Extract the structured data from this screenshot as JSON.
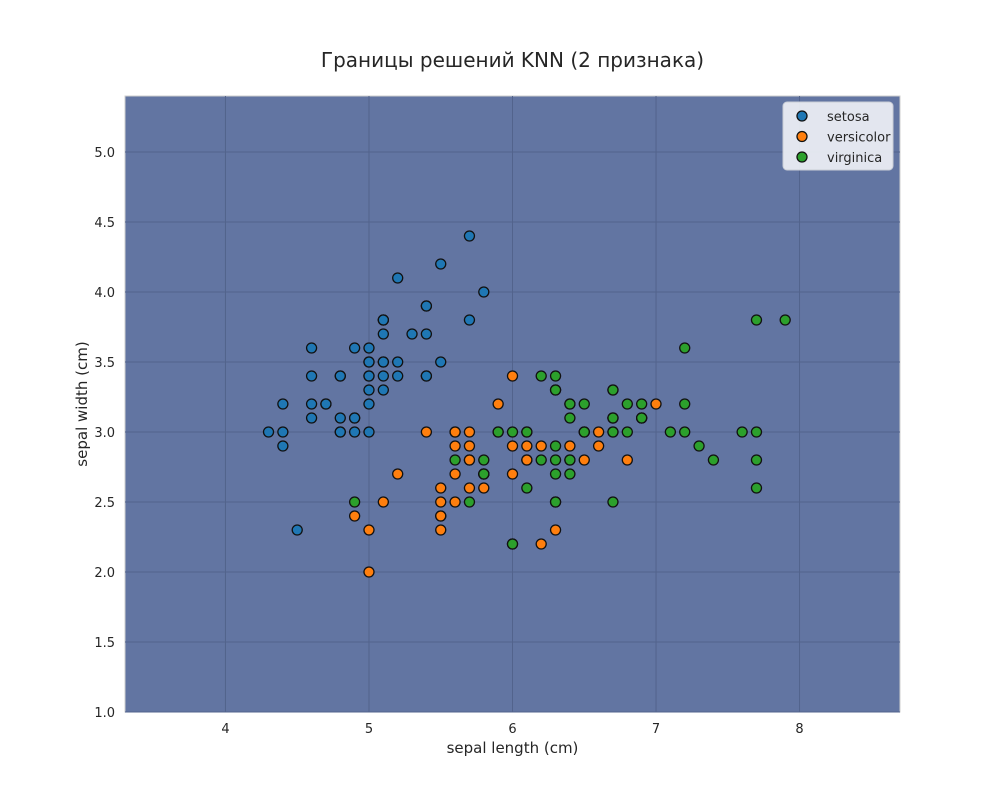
{
  "chart_data": {
    "type": "scatter",
    "title": "Границы решений KNN (2 признака)",
    "xlabel": "sepal length (cm)",
    "ylabel": "sepal width (cm)",
    "xlim": [
      3.3,
      8.7
    ],
    "ylim": [
      1.0,
      5.4
    ],
    "xticks": [
      4,
      5,
      6,
      7,
      8
    ],
    "yticks": [
      1.0,
      1.5,
      2.0,
      2.5,
      3.0,
      3.5,
      4.0,
      4.5,
      5.0
    ],
    "grid": true,
    "background_color": "#6275a2",
    "legend_position": "top-right",
    "series": [
      {
        "name": "setosa",
        "color": "#1f77b4",
        "points": [
          [
            5.1,
            3.5
          ],
          [
            4.9,
            3.0
          ],
          [
            4.7,
            3.2
          ],
          [
            4.6,
            3.1
          ],
          [
            5.0,
            3.6
          ],
          [
            5.4,
            3.9
          ],
          [
            4.6,
            3.4
          ],
          [
            5.0,
            3.4
          ],
          [
            4.4,
            2.9
          ],
          [
            4.9,
            3.1
          ],
          [
            5.4,
            3.7
          ],
          [
            4.8,
            3.4
          ],
          [
            4.8,
            3.0
          ],
          [
            4.3,
            3.0
          ],
          [
            5.8,
            4.0
          ],
          [
            5.7,
            4.4
          ],
          [
            5.4,
            3.9
          ],
          [
            5.1,
            3.5
          ],
          [
            5.7,
            3.8
          ],
          [
            5.1,
            3.8
          ],
          [
            5.4,
            3.4
          ],
          [
            5.1,
            3.7
          ],
          [
            4.6,
            3.6
          ],
          [
            5.1,
            3.3
          ],
          [
            4.8,
            3.4
          ],
          [
            5.0,
            3.0
          ],
          [
            5.0,
            3.4
          ],
          [
            5.2,
            3.5
          ],
          [
            5.2,
            3.4
          ],
          [
            4.7,
            3.2
          ],
          [
            4.8,
            3.1
          ],
          [
            5.4,
            3.4
          ],
          [
            5.2,
            4.1
          ],
          [
            5.5,
            4.2
          ],
          [
            4.9,
            3.1
          ],
          [
            5.0,
            3.2
          ],
          [
            5.5,
            3.5
          ],
          [
            4.9,
            3.6
          ],
          [
            4.4,
            3.0
          ],
          [
            5.1,
            3.4
          ],
          [
            5.0,
            3.5
          ],
          [
            4.5,
            2.3
          ],
          [
            4.4,
            3.2
          ],
          [
            5.0,
            3.5
          ],
          [
            5.1,
            3.8
          ],
          [
            4.8,
            3.0
          ],
          [
            5.1,
            3.8
          ],
          [
            4.6,
            3.2
          ],
          [
            5.3,
            3.7
          ],
          [
            5.0,
            3.3
          ]
        ]
      },
      {
        "name": "versicolor",
        "color": "#ff7f0e",
        "points": [
          [
            7.0,
            3.2
          ],
          [
            6.4,
            3.2
          ],
          [
            6.9,
            3.1
          ],
          [
            5.5,
            2.3
          ],
          [
            6.5,
            2.8
          ],
          [
            5.7,
            2.8
          ],
          [
            6.3,
            3.3
          ],
          [
            4.9,
            2.4
          ],
          [
            6.6,
            2.9
          ],
          [
            5.2,
            2.7
          ],
          [
            5.0,
            2.0
          ],
          [
            5.9,
            3.0
          ],
          [
            6.0,
            2.2
          ],
          [
            6.1,
            2.9
          ],
          [
            5.6,
            2.9
          ],
          [
            6.7,
            3.1
          ],
          [
            5.6,
            3.0
          ],
          [
            5.8,
            2.7
          ],
          [
            6.2,
            2.2
          ],
          [
            5.6,
            2.5
          ],
          [
            5.9,
            3.2
          ],
          [
            6.1,
            2.8
          ],
          [
            6.3,
            2.5
          ],
          [
            6.1,
            2.8
          ],
          [
            6.4,
            2.9
          ],
          [
            6.6,
            3.0
          ],
          [
            6.8,
            2.8
          ],
          [
            6.7,
            3.0
          ],
          [
            6.0,
            2.9
          ],
          [
            5.7,
            2.6
          ],
          [
            5.5,
            2.4
          ],
          [
            5.5,
            2.4
          ],
          [
            5.8,
            2.7
          ],
          [
            6.0,
            2.7
          ],
          [
            5.4,
            3.0
          ],
          [
            6.0,
            3.4
          ],
          [
            6.7,
            3.1
          ],
          [
            6.3,
            2.3
          ],
          [
            5.6,
            3.0
          ],
          [
            5.5,
            2.5
          ],
          [
            5.5,
            2.6
          ],
          [
            6.1,
            3.0
          ],
          [
            5.8,
            2.6
          ],
          [
            5.0,
            2.3
          ],
          [
            5.6,
            2.7
          ],
          [
            5.7,
            3.0
          ],
          [
            5.7,
            2.9
          ],
          [
            6.2,
            2.9
          ],
          [
            5.1,
            2.5
          ],
          [
            5.7,
            2.8
          ]
        ]
      },
      {
        "name": "virginica",
        "color": "#2ca02c",
        "points": [
          [
            6.3,
            3.3
          ],
          [
            5.8,
            2.7
          ],
          [
            7.1,
            3.0
          ],
          [
            6.3,
            2.9
          ],
          [
            6.5,
            3.0
          ],
          [
            7.6,
            3.0
          ],
          [
            4.9,
            2.5
          ],
          [
            7.3,
            2.9
          ],
          [
            6.7,
            2.5
          ],
          [
            7.2,
            3.6
          ],
          [
            6.5,
            3.2
          ],
          [
            6.4,
            2.7
          ],
          [
            6.8,
            3.0
          ],
          [
            5.7,
            2.5
          ],
          [
            5.8,
            2.8
          ],
          [
            6.4,
            3.2
          ],
          [
            6.5,
            3.0
          ],
          [
            7.7,
            3.8
          ],
          [
            7.7,
            2.6
          ],
          [
            6.0,
            2.2
          ],
          [
            6.9,
            3.2
          ],
          [
            5.6,
            2.8
          ],
          [
            7.7,
            2.8
          ],
          [
            6.3,
            2.7
          ],
          [
            6.7,
            3.3
          ],
          [
            7.2,
            3.2
          ],
          [
            6.2,
            2.8
          ],
          [
            6.1,
            3.0
          ],
          [
            6.4,
            2.8
          ],
          [
            7.2,
            3.0
          ],
          [
            7.4,
            2.8
          ],
          [
            7.9,
            3.8
          ],
          [
            6.4,
            2.8
          ],
          [
            6.3,
            2.8
          ],
          [
            6.1,
            2.6
          ],
          [
            7.7,
            3.0
          ],
          [
            6.3,
            3.4
          ],
          [
            6.4,
            3.1
          ],
          [
            6.0,
            3.0
          ],
          [
            6.9,
            3.1
          ],
          [
            6.7,
            3.1
          ],
          [
            6.9,
            3.1
          ],
          [
            5.8,
            2.7
          ],
          [
            6.8,
            3.2
          ],
          [
            6.7,
            3.3
          ],
          [
            6.7,
            3.0
          ],
          [
            6.3,
            2.5
          ],
          [
            6.5,
            3.0
          ],
          [
            6.2,
            3.4
          ],
          [
            5.9,
            3.0
          ]
        ]
      }
    ]
  }
}
